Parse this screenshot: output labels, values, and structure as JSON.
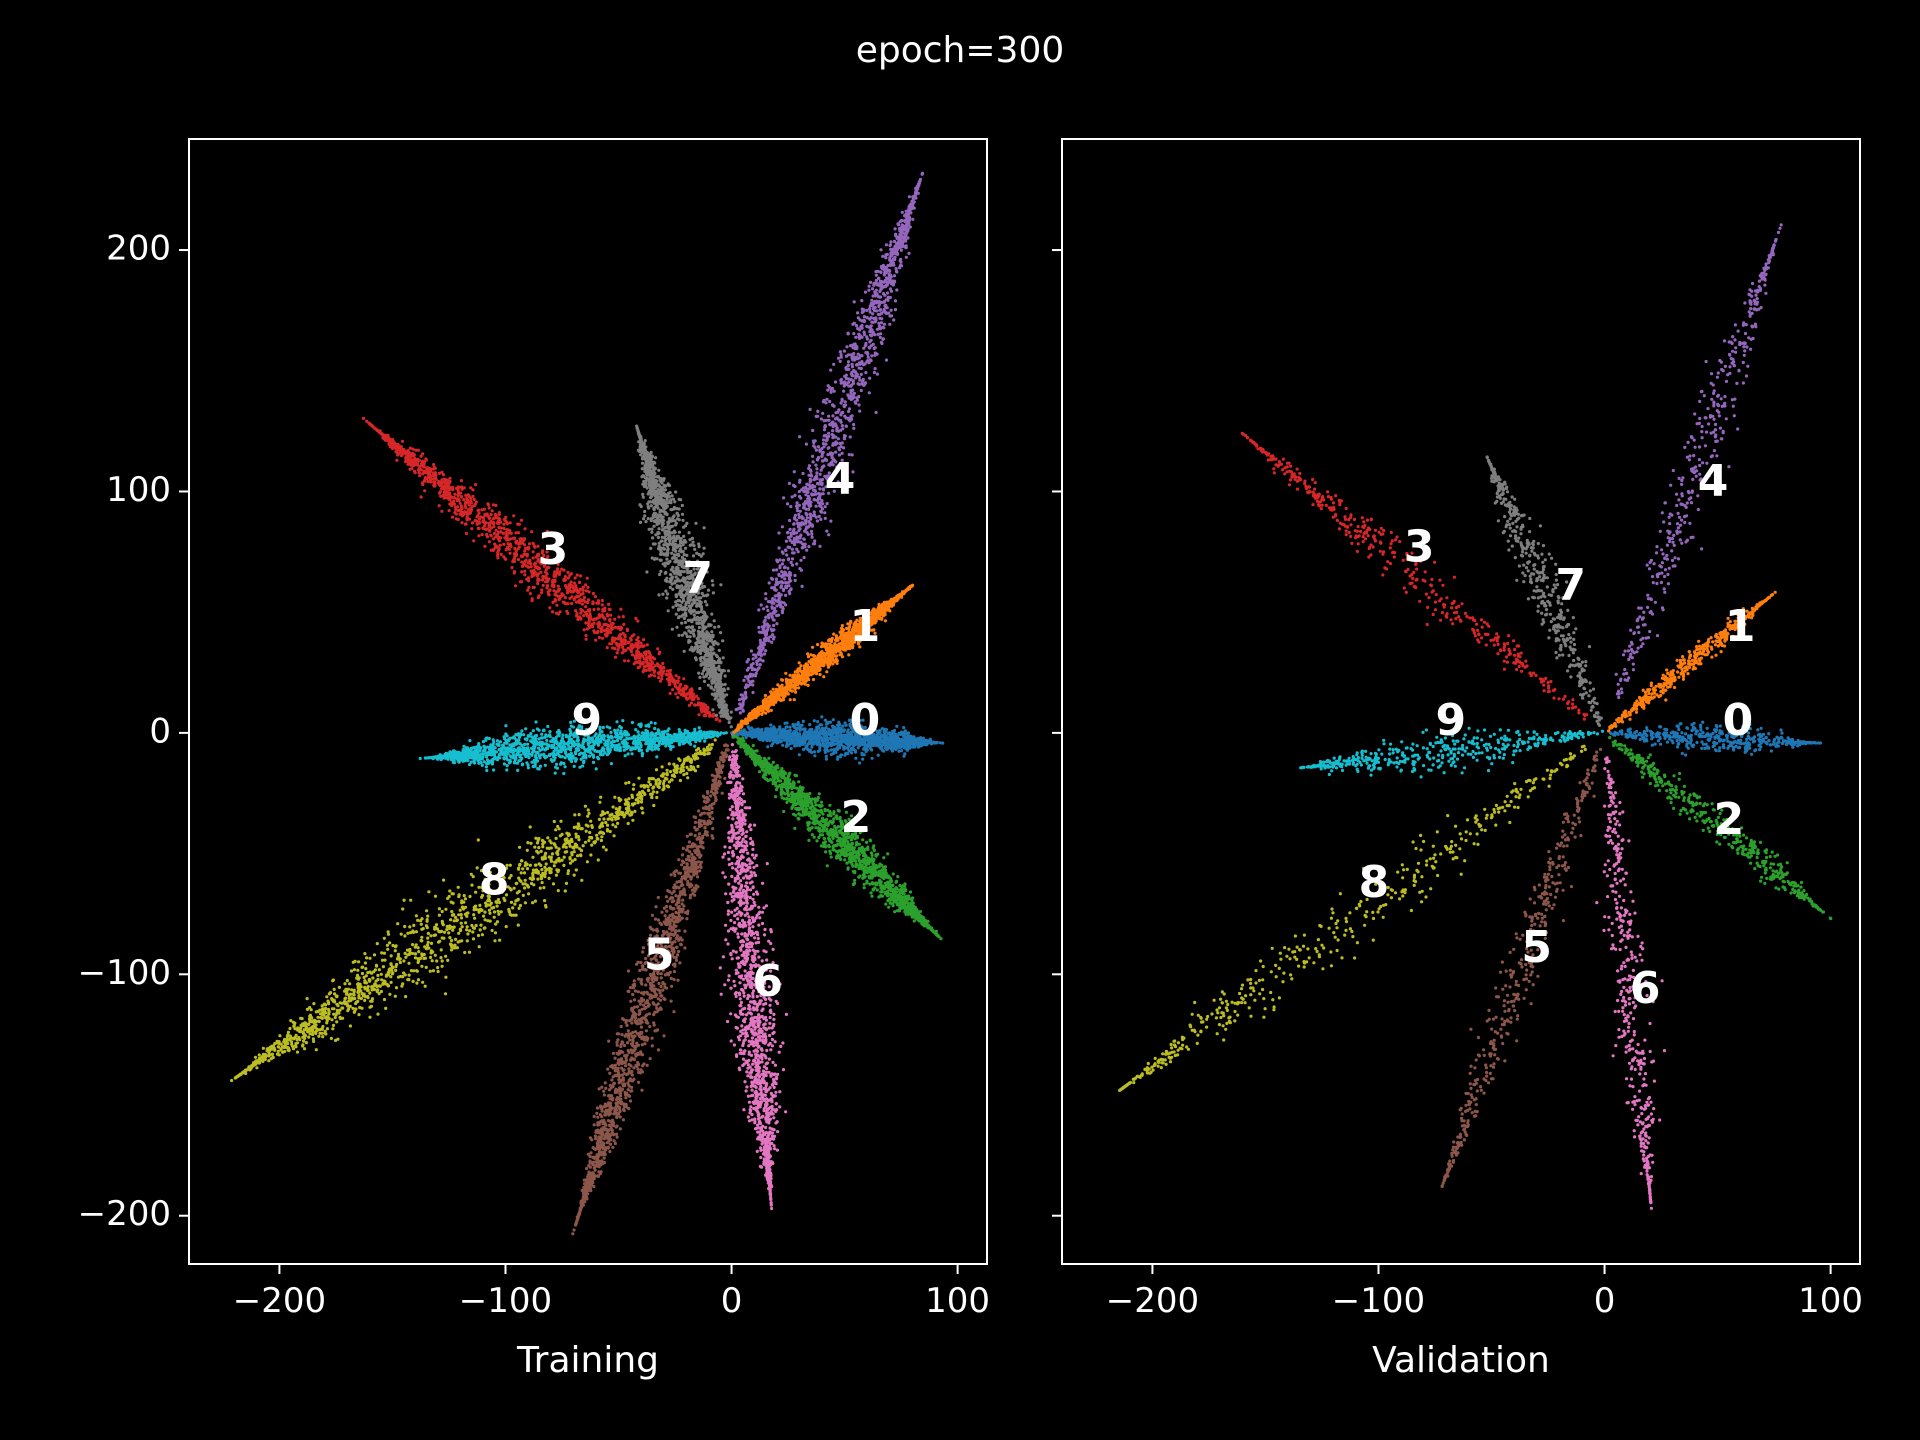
{
  "figure": {
    "title": "epoch=300",
    "background": "#000000",
    "foreground": "#ffffff"
  },
  "chart_data": [
    {
      "type": "scatter",
      "xlabel": "Training",
      "ylabel": "",
      "xlim": [
        -240,
        113
      ],
      "ylim": [
        -220,
        246
      ],
      "xticks": [
        -200,
        -100,
        0,
        100
      ],
      "xtick_labels": [
        "−200",
        "−100",
        "0",
        "100"
      ],
      "yticks": [
        -200,
        -100,
        0,
        100,
        200
      ],
      "ytick_labels": [
        "−200",
        "−100",
        "0",
        "100",
        "200"
      ],
      "grid": false,
      "legend": "none",
      "series": [
        {
          "name": "0",
          "color": "#1f77b4",
          "label_x": 59,
          "label_y": 4,
          "tip_x": 88,
          "tip_y": -4,
          "half_width": 9,
          "points": 1400
        },
        {
          "name": "1",
          "color": "#ff7f0e",
          "label_x": 59,
          "label_y": 43,
          "tip_x": 76,
          "tip_y": 58,
          "half_width": 6,
          "points": 1400
        },
        {
          "name": "2",
          "color": "#2ca02c",
          "label_x": 55,
          "label_y": -36,
          "tip_x": 88,
          "tip_y": -81,
          "half_width": 10,
          "points": 1400
        },
        {
          "name": "3",
          "color": "#d62728",
          "label_x": -79,
          "label_y": 75,
          "tip_x": -155,
          "tip_y": 124,
          "half_width": 12,
          "points": 1400
        },
        {
          "name": "4",
          "color": "#9467bd",
          "label_x": 48,
          "label_y": 104,
          "tip_x": 82,
          "tip_y": 225,
          "half_width": 13,
          "points": 1400
        },
        {
          "name": "5",
          "color": "#8c564b",
          "label_x": -32,
          "label_y": -93,
          "tip_x": -67,
          "tip_y": -198,
          "half_width": 12,
          "points": 1400
        },
        {
          "name": "6",
          "color": "#e377c2",
          "label_x": 16,
          "label_y": -104,
          "tip_x": 17,
          "tip_y": -189,
          "half_width": 13,
          "points": 1400
        },
        {
          "name": "7",
          "color": "#7f7f7f",
          "label_x": -15,
          "label_y": 63,
          "tip_x": -40,
          "tip_y": 121,
          "half_width": 13,
          "points": 1400
        },
        {
          "name": "8",
          "color": "#bcbd22",
          "label_x": -105,
          "label_y": -62,
          "tip_x": -215,
          "tip_y": -140,
          "half_width": 18,
          "points": 1400
        },
        {
          "name": "9",
          "color": "#17becf",
          "label_x": -64,
          "label_y": 4,
          "tip_x": -130,
          "tip_y": -10,
          "half_width": 11,
          "points": 1400
        }
      ]
    },
    {
      "type": "scatter",
      "xlabel": "Validation",
      "ylabel": "",
      "xlim": [
        -240,
        113
      ],
      "ylim": [
        -220,
        246
      ],
      "xticks": [
        -200,
        -100,
        0,
        100
      ],
      "xtick_labels": [
        "−200",
        "−100",
        "0",
        "100"
      ],
      "yticks": [
        -200,
        -100,
        0,
        100,
        200
      ],
      "ytick_labels": [
        "",
        "",
        "",
        "",
        ""
      ],
      "grid": false,
      "legend": "none",
      "series": [
        {
          "name": "0",
          "color": "#1f77b4",
          "label_x": 59,
          "label_y": 4,
          "tip_x": 90,
          "tip_y": -4,
          "half_width": 8,
          "points": 420
        },
        {
          "name": "1",
          "color": "#ff7f0e",
          "label_x": 60,
          "label_y": 43,
          "tip_x": 70,
          "tip_y": 54,
          "half_width": 6,
          "points": 420
        },
        {
          "name": "2",
          "color": "#2ca02c",
          "label_x": 55,
          "label_y": -37,
          "tip_x": 95,
          "tip_y": -73,
          "half_width": 9,
          "points": 420
        },
        {
          "name": "3",
          "color": "#d62728",
          "label_x": -82,
          "label_y": 76,
          "tip_x": -155,
          "tip_y": 120,
          "half_width": 10,
          "points": 420
        },
        {
          "name": "4",
          "color": "#9467bd",
          "label_x": 48,
          "label_y": 103,
          "tip_x": 75,
          "tip_y": 202,
          "half_width": 12,
          "points": 420
        },
        {
          "name": "5",
          "color": "#8c564b",
          "label_x": -30,
          "label_y": -90,
          "tip_x": -70,
          "tip_y": -183,
          "half_width": 11,
          "points": 420
        },
        {
          "name": "6",
          "color": "#e377c2",
          "label_x": 18,
          "label_y": -107,
          "tip_x": 20,
          "tip_y": -190,
          "half_width": 11,
          "points": 420
        },
        {
          "name": "7",
          "color": "#7f7f7f",
          "label_x": -15,
          "label_y": 60,
          "tip_x": -50,
          "tip_y": 110,
          "half_width": 11,
          "points": 420
        },
        {
          "name": "8",
          "color": "#bcbd22",
          "label_x": -102,
          "label_y": -63,
          "tip_x": -210,
          "tip_y": -145,
          "half_width": 15,
          "points": 420
        },
        {
          "name": "9",
          "color": "#17becf",
          "label_x": -68,
          "label_y": 4,
          "tip_x": -130,
          "tip_y": -14,
          "half_width": 10,
          "points": 420
        }
      ]
    }
  ]
}
